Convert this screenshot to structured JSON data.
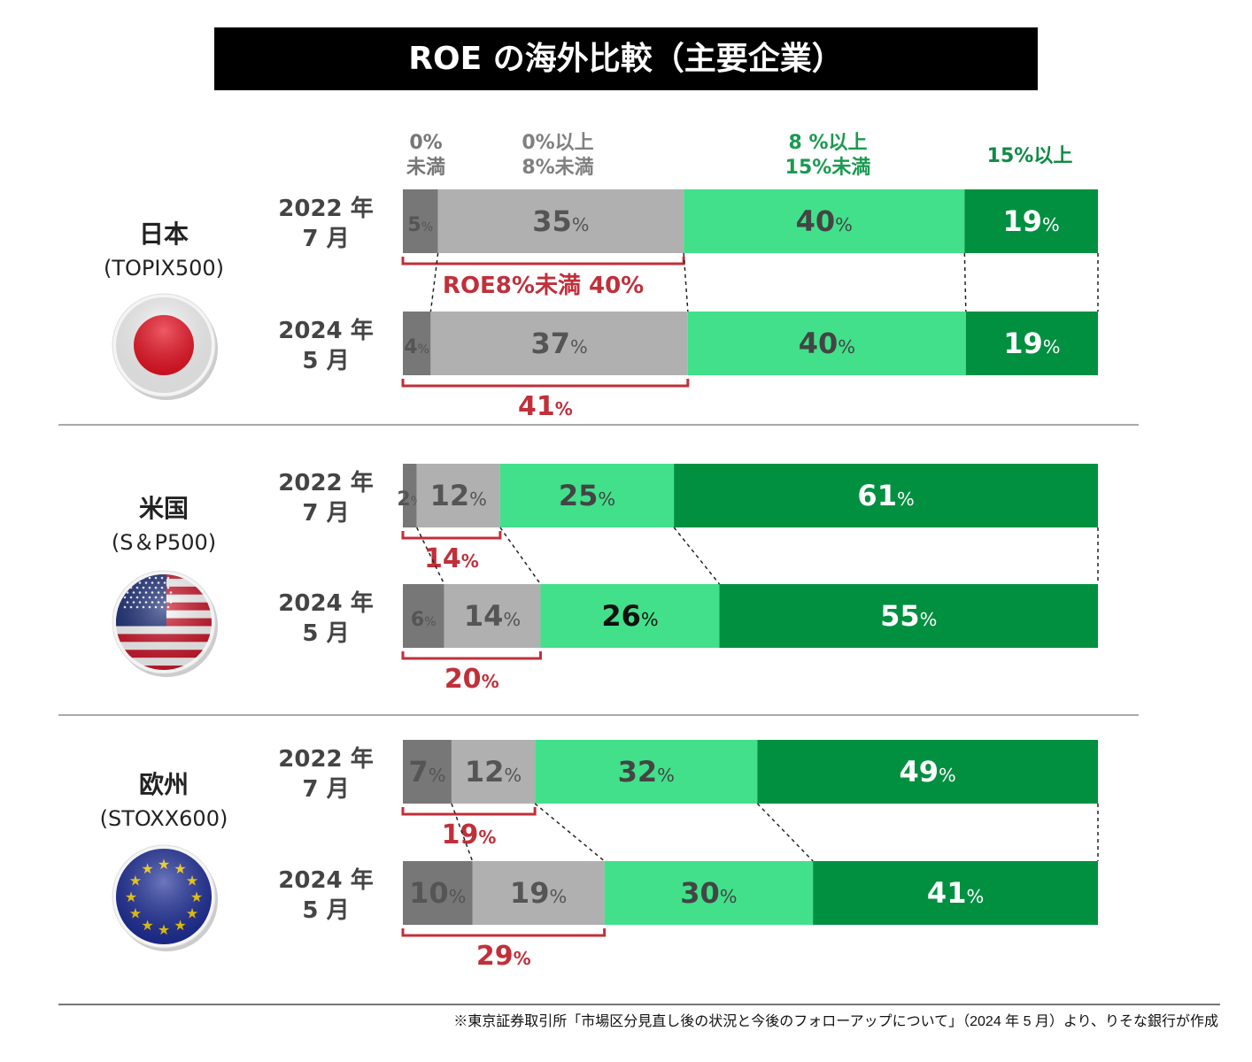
{
  "chart_data": {
    "type": "bar",
    "orientation": "horizontal-stacked-100",
    "title": "ROE の海外比較（主要企業）",
    "legend": {
      "placement": "top",
      "entries": [
        {
          "label": [
            "0%",
            "未満"
          ],
          "color": "#777777",
          "text_color": "#777777"
        },
        {
          "label": [
            "0%以上",
            "8%未満"
          ],
          "color": "#b0b0b0",
          "text_color": "#808080"
        },
        {
          "label": [
            "8 %以上",
            "15%未満"
          ],
          "color": "#42e08a",
          "text_color": "#1a9a50"
        },
        {
          "label": [
            "15%以上"
          ],
          "color": "#009040",
          "text_color": "#0f8a44"
        }
      ]
    },
    "groups": [
      {
        "name": "日本",
        "index": "(TOPIX500)",
        "flag": "japan-flag",
        "rows": [
          {
            "year": "2022 年",
            "month": "7 月",
            "values": [
              5,
              35,
              40,
              19
            ],
            "bracket_label": "ROE8%未満 40%"
          },
          {
            "year": "2024 年",
            "month": "5 月",
            "values": [
              4,
              37,
              40,
              19
            ],
            "bracket_label": "41%"
          }
        ]
      },
      {
        "name": "米国",
        "index": "(S＆P500)",
        "flag": "usa-flag",
        "rows": [
          {
            "year": "2022 年",
            "month": "7 月",
            "values": [
              2,
              12,
              25,
              61
            ],
            "bracket_label": "14%"
          },
          {
            "year": "2024 年",
            "month": "5 月",
            "values": [
              6,
              14,
              26,
              55
            ],
            "bracket_label": "20%"
          }
        ]
      },
      {
        "name": "欧州",
        "index": "(STOXX600)",
        "flag": "eu-flag",
        "rows": [
          {
            "year": "2022 年",
            "month": "7 月",
            "values": [
              7,
              12,
              32,
              49
            ],
            "bracket_label": "19%"
          },
          {
            "year": "2024 年",
            "month": "5 月",
            "values": [
              10,
              19,
              30,
              41
            ],
            "bracket_label": "29%"
          }
        ]
      }
    ],
    "bracket_color": "#c0303a",
    "unit": "%"
  },
  "footnote": "※東京証券取引所「市場区分見直し後の状況と今後のフォローアップについて」（2024 年 5 月）より、りそな銀行が作成"
}
